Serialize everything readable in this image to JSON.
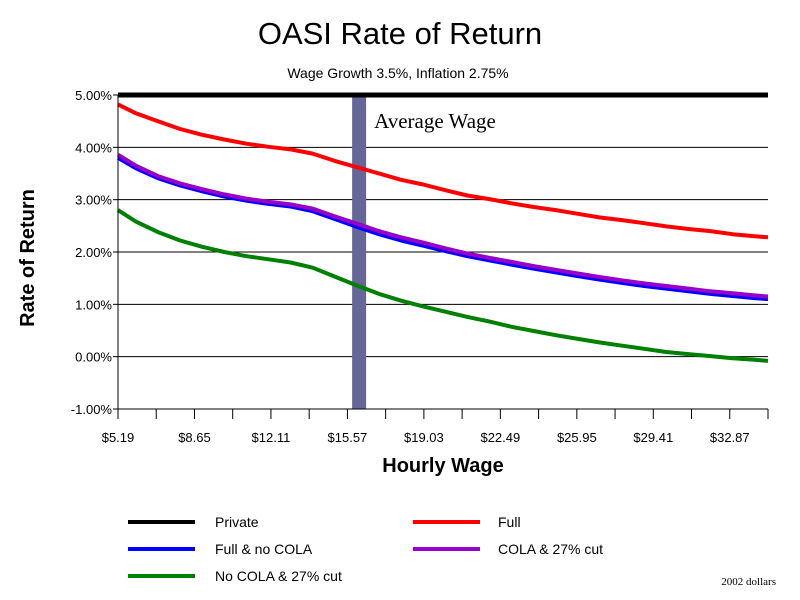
{
  "chart_data": {
    "type": "line",
    "title": "OASI Rate of Return",
    "subtitle": "Wage Growth 3.5%, Inflation 2.75%",
    "xlabel": "Hourly Wage",
    "ylabel": "Rate of Return",
    "xlim": [
      5.19,
      34.6
    ],
    "ylim": [
      -1.0,
      5.0
    ],
    "x_tick_labels": [
      "$5.19",
      "$8.65",
      "$12.11",
      "$15.57",
      "$19.03",
      "$22.49",
      "$25.95",
      "$29.41",
      "$32.87"
    ],
    "x_tick_values": [
      5.19,
      8.65,
      12.11,
      15.57,
      19.03,
      22.49,
      25.95,
      29.41,
      32.87
    ],
    "y_tick_labels": [
      "5.00%",
      "4.00%",
      "3.00%",
      "2.00%",
      "1.00%",
      "0.00%",
      "-1.00%"
    ],
    "y_tick_values": [
      5,
      4,
      3,
      2,
      1,
      0,
      -1
    ],
    "grid": "horizontal",
    "annotation": {
      "text": "Average Wage",
      "x": 16.1,
      "color": "#666699"
    },
    "legend_position": "bottom",
    "note": "2002 dollars",
    "series": [
      {
        "name": "Private",
        "color": "#000000",
        "x": [
          5.19,
          34.6
        ],
        "values": [
          5.0,
          5.0
        ]
      },
      {
        "name": "Full",
        "color": "#ff0000",
        "x": [
          5.19,
          6.0,
          7.0,
          8.0,
          9.0,
          10.0,
          11.0,
          12.0,
          13.0,
          14.0,
          15.0,
          16.0,
          17.0,
          18.0,
          19.0,
          20.0,
          21.0,
          22.0,
          23.0,
          24.0,
          25.0,
          26.0,
          27.0,
          28.0,
          29.0,
          30.0,
          31.0,
          32.0,
          33.0,
          34.0,
          34.6
        ],
        "values": [
          4.82,
          4.65,
          4.5,
          4.35,
          4.24,
          4.15,
          4.07,
          4.01,
          3.96,
          3.88,
          3.74,
          3.62,
          3.5,
          3.38,
          3.29,
          3.18,
          3.08,
          3.01,
          2.93,
          2.86,
          2.8,
          2.73,
          2.66,
          2.61,
          2.55,
          2.49,
          2.44,
          2.4,
          2.34,
          2.3,
          2.28
        ]
      },
      {
        "name": "Full & no COLA",
        "color": "#0000ff",
        "x": [
          5.19,
          6.0,
          7.0,
          8.0,
          9.0,
          10.0,
          11.0,
          12.0,
          13.0,
          14.0,
          15.0,
          16.0,
          17.0,
          18.0,
          19.0,
          20.0,
          21.0,
          22.0,
          23.0,
          24.0,
          25.0,
          26.0,
          27.0,
          28.0,
          29.0,
          30.0,
          31.0,
          32.0,
          33.0,
          34.0,
          34.6
        ],
        "values": [
          3.8,
          3.6,
          3.41,
          3.27,
          3.16,
          3.06,
          2.98,
          2.92,
          2.87,
          2.78,
          2.63,
          2.48,
          2.34,
          2.22,
          2.12,
          2.02,
          1.92,
          1.84,
          1.76,
          1.68,
          1.61,
          1.54,
          1.47,
          1.41,
          1.35,
          1.3,
          1.25,
          1.2,
          1.16,
          1.12,
          1.1
        ]
      },
      {
        "name": "COLA & 27% cut",
        "color": "#9900cc",
        "x": [
          5.19,
          6.0,
          7.0,
          8.0,
          9.0,
          10.0,
          11.0,
          12.0,
          13.0,
          14.0,
          15.0,
          16.0,
          17.0,
          18.0,
          19.0,
          20.0,
          21.0,
          22.0,
          23.0,
          24.0,
          25.0,
          26.0,
          27.0,
          28.0,
          29.0,
          30.0,
          31.0,
          32.0,
          33.0,
          34.0,
          34.6
        ],
        "values": [
          3.86,
          3.65,
          3.45,
          3.31,
          3.2,
          3.1,
          3.02,
          2.96,
          2.91,
          2.83,
          2.68,
          2.54,
          2.4,
          2.28,
          2.18,
          2.07,
          1.97,
          1.89,
          1.81,
          1.73,
          1.66,
          1.59,
          1.52,
          1.46,
          1.4,
          1.35,
          1.3,
          1.25,
          1.21,
          1.17,
          1.15
        ]
      },
      {
        "name": "No COLA & 27% cut",
        "color": "#008000",
        "x": [
          5.19,
          6.0,
          7.0,
          8.0,
          9.0,
          10.0,
          11.0,
          12.0,
          13.0,
          14.0,
          15.0,
          16.0,
          17.0,
          18.0,
          19.0,
          20.0,
          21.0,
          22.0,
          23.0,
          24.0,
          25.0,
          26.0,
          27.0,
          28.0,
          29.0,
          30.0,
          31.0,
          32.0,
          33.0,
          34.0,
          34.6
        ],
        "values": [
          2.8,
          2.58,
          2.38,
          2.22,
          2.1,
          2.0,
          1.92,
          1.86,
          1.8,
          1.7,
          1.53,
          1.36,
          1.2,
          1.07,
          0.96,
          0.86,
          0.76,
          0.67,
          0.57,
          0.49,
          0.41,
          0.34,
          0.27,
          0.21,
          0.15,
          0.09,
          0.05,
          0.01,
          -0.03,
          -0.06,
          -0.08
        ]
      }
    ]
  }
}
